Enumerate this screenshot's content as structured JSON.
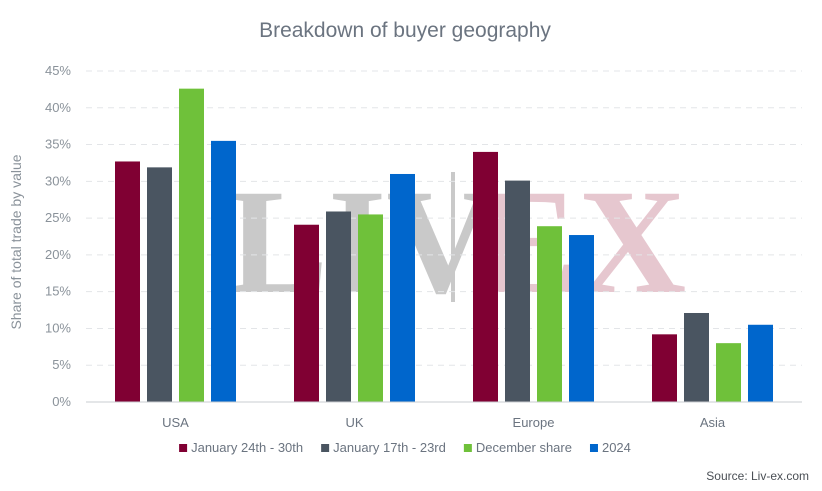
{
  "chart_data": {
    "type": "bar",
    "title": "Breakdown of buyer geography",
    "ylabel": "Share of total trade by value",
    "xlabel": "",
    "ylim": [
      0,
      45
    ],
    "yticks": [
      "0%",
      "5%",
      "10%",
      "15%",
      "20%",
      "25%",
      "30%",
      "35%",
      "40%",
      "45%"
    ],
    "categories": [
      "USA",
      "UK",
      "Europe",
      "Asia"
    ],
    "series": [
      {
        "name": "January 24th - 30th",
        "color": "#800033",
        "values": [
          32.7,
          24.1,
          34.0,
          9.2
        ]
      },
      {
        "name": "January 17th - 23rd",
        "color": "#4a5561",
        "values": [
          31.9,
          25.9,
          30.1,
          12.1
        ]
      },
      {
        "name": "December share",
        "color": "#6fc13a",
        "values": [
          42.6,
          25.5,
          23.9,
          8.0
        ]
      },
      {
        "name": "2024",
        "color": "#0066cc",
        "values": [
          35.5,
          31.0,
          22.7,
          10.5
        ]
      }
    ],
    "grid": true,
    "legend_position": "bottom",
    "source": "Source: Liv-ex.com"
  },
  "watermark": {
    "left": "LIV",
    "right": "EX"
  }
}
